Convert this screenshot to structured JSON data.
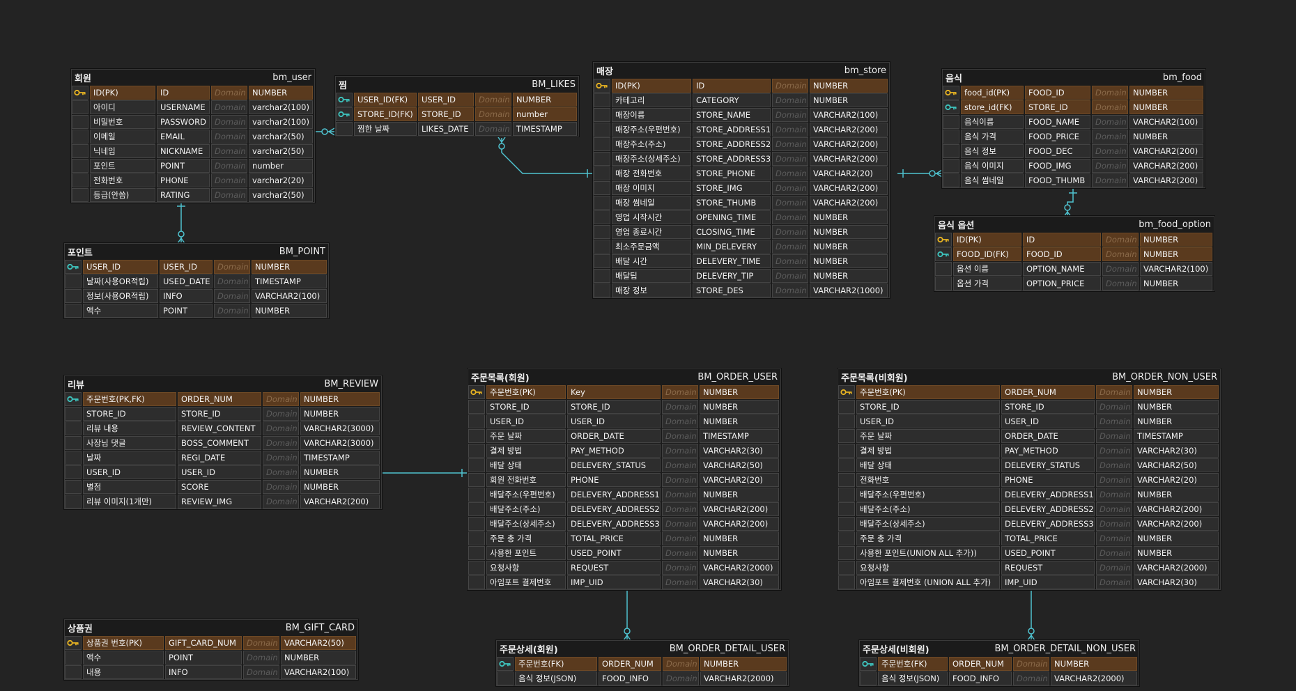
{
  "colors": {
    "background": "#232323",
    "key_row": "#5a3a1e",
    "row": "#2d2d2d",
    "connector": "#4fc3d0",
    "pk_icon": "#e8b422",
    "fk_icon": "#3ec6c0"
  },
  "entities": [
    {
      "id": "bm_user",
      "logical": "회원",
      "physical": "bm_user",
      "columns": [
        {
          "icon": "pk",
          "name": "ID(PK)",
          "field": "ID",
          "domain": "Domain",
          "type": "NUMBER"
        },
        {
          "icon": "",
          "name": "아이디",
          "field": "USERNAME",
          "domain": "Domain",
          "type": "varchar2(100)"
        },
        {
          "icon": "",
          "name": "비밀번호",
          "field": "PASSWORD",
          "domain": "Domain",
          "type": "varchar2(100)"
        },
        {
          "icon": "",
          "name": "이메일",
          "field": "EMAIL",
          "domain": "Domain",
          "type": "varchar2(50)"
        },
        {
          "icon": "",
          "name": "닉네임",
          "field": "NICKNAME",
          "domain": "Domain",
          "type": "varchar2(50)"
        },
        {
          "icon": "",
          "name": "포인트",
          "field": "POINT",
          "domain": "Domain",
          "type": "number"
        },
        {
          "icon": "",
          "name": "전화번호",
          "field": "PHONE",
          "domain": "Domain",
          "type": "varchar2(20)"
        },
        {
          "icon": "",
          "name": "등급(안씀)",
          "field": "RATING",
          "domain": "Domain",
          "type": "varchar2(50)"
        }
      ]
    },
    {
      "id": "bm_likes",
      "logical": "찜",
      "physical": "BM_LIKES",
      "columns": [
        {
          "icon": "fk",
          "name": "USER_ID(FK)",
          "field": "USER_ID",
          "domain": "Domain",
          "type": "NUMBER"
        },
        {
          "icon": "fk",
          "name": "STORE_ID(FK)",
          "field": "STORE_ID",
          "domain": "Domain",
          "type": "number"
        },
        {
          "icon": "",
          "name": "찜한 날짜",
          "field": "LIKES_DATE",
          "domain": "Domain",
          "type": "TIMESTAMP"
        }
      ]
    },
    {
      "id": "bm_store",
      "logical": "매장",
      "physical": "bm_store",
      "columns": [
        {
          "icon": "pk",
          "name": "ID(PK)",
          "field": "ID",
          "domain": "Domain",
          "type": "NUMBER"
        },
        {
          "icon": "",
          "name": "카테고리",
          "field": "CATEGORY",
          "domain": "Domain",
          "type": "NUMBER"
        },
        {
          "icon": "",
          "name": "매장이름",
          "field": "STORE_NAME",
          "domain": "Domain",
          "type": "VARCHAR2(100)"
        },
        {
          "icon": "",
          "name": "매장주소(우편번호)",
          "field": "STORE_ADDRESS1",
          "domain": "Domain",
          "type": "VARCHAR2(200)"
        },
        {
          "icon": "",
          "name": "매장주소(주소)",
          "field": "STORE_ADDRESS2",
          "domain": "Domain",
          "type": "VARCHAR2(200)"
        },
        {
          "icon": "",
          "name": "매장주소(상세주소)",
          "field": "STORE_ADDRESS3",
          "domain": "Domain",
          "type": "VARCHAR2(200)"
        },
        {
          "icon": "",
          "name": "매장 전화번호",
          "field": "STORE_PHONE",
          "domain": "Domain",
          "type": "VARCHAR2(20)"
        },
        {
          "icon": "",
          "name": "매장 이미지",
          "field": "STORE_IMG",
          "domain": "Domain",
          "type": "VARCHAR2(200)"
        },
        {
          "icon": "",
          "name": "매장 썸네일",
          "field": "STORE_THUMB",
          "domain": "Domain",
          "type": "VARCHAR2(200)"
        },
        {
          "icon": "",
          "name": "영업 시작시간",
          "field": "OPENING_TIME",
          "domain": "Domain",
          "type": "NUMBER"
        },
        {
          "icon": "",
          "name": "영업 종료시간",
          "field": "CLOSING_TIME",
          "domain": "Domain",
          "type": "NUMBER"
        },
        {
          "icon": "",
          "name": "최소주문금액",
          "field": "MIN_DELEVERY",
          "domain": "Domain",
          "type": "NUMBER"
        },
        {
          "icon": "",
          "name": "배달 시간",
          "field": "DELEVERY_TIME",
          "domain": "Domain",
          "type": "NUMBER"
        },
        {
          "icon": "",
          "name": "배달팁",
          "field": "DELEVERY_TIP",
          "domain": "Domain",
          "type": "NUMBER"
        },
        {
          "icon": "",
          "name": "매장 정보",
          "field": "STORE_DES",
          "domain": "Domain",
          "type": "VARCHAR2(1000)"
        }
      ]
    },
    {
      "id": "bm_food",
      "logical": "음식",
      "physical": "bm_food",
      "columns": [
        {
          "icon": "pk",
          "name": "food_id(PK)",
          "field": "FOOD_ID",
          "domain": "Domain",
          "type": "NUMBER"
        },
        {
          "icon": "fk",
          "name": "store_id(FK)",
          "field": "STORE_ID",
          "domain": "Domain",
          "type": "NUMBER"
        },
        {
          "icon": "",
          "name": "음식이름",
          "field": "FOOD_NAME",
          "domain": "Domain",
          "type": "VARCHAR2(100)"
        },
        {
          "icon": "",
          "name": "음식 가격",
          "field": "FOOD_PRICE",
          "domain": "Domain",
          "type": "NUMBER"
        },
        {
          "icon": "",
          "name": "음식 정보",
          "field": "FOOD_DEC",
          "domain": "Domain",
          "type": "VARCHAR2(200)"
        },
        {
          "icon": "",
          "name": "음식 이미지",
          "field": "FOOD_IMG",
          "domain": "Domain",
          "type": "VARCHAR2(200)"
        },
        {
          "icon": "",
          "name": "음식 썸네일",
          "field": "FOOD_THUMB",
          "domain": "Domain",
          "type": "VARCHAR2(200)"
        }
      ]
    },
    {
      "id": "bm_food_option",
      "logical": "음식 옵션",
      "physical": "bm_food_option",
      "columns": [
        {
          "icon": "pk",
          "name": "ID(PK)",
          "field": "ID",
          "domain": "Domain",
          "type": "NUMBER"
        },
        {
          "icon": "fk",
          "name": "FOOD_ID(FK)",
          "field": "FOOD_ID",
          "domain": "Domain",
          "type": "NUMBER"
        },
        {
          "icon": "",
          "name": "옵션 이름",
          "field": "OPTION_NAME",
          "domain": "Domain",
          "type": "VARCHAR2(100)"
        },
        {
          "icon": "",
          "name": "옵션 가격",
          "field": "OPTION_PRICE",
          "domain": "Domain",
          "type": "NUMBER"
        }
      ]
    },
    {
      "id": "bm_point",
      "logical": "포인트",
      "physical": "BM_POINT",
      "columns": [
        {
          "icon": "fk",
          "name": "USER_ID",
          "field": "USER_ID",
          "domain": "Domain",
          "type": "NUMBER"
        },
        {
          "icon": "",
          "name": "날짜(사용OR적립)",
          "field": "USED_DATE",
          "domain": "Domain",
          "type": "TIMESTAMP"
        },
        {
          "icon": "",
          "name": "정보(사용OR적립)",
          "field": "INFO",
          "domain": "Domain",
          "type": "VARCHAR2(100)"
        },
        {
          "icon": "",
          "name": "액수",
          "field": "POINT",
          "domain": "Domain",
          "type": "NUMBER"
        }
      ]
    },
    {
      "id": "bm_review",
      "logical": "리뷰",
      "physical": "BM_REVIEW",
      "columns": [
        {
          "icon": "fk",
          "name": "주문번호(PK,FK)",
          "field": "ORDER_NUM",
          "domain": "Domain",
          "type": "NUMBER"
        },
        {
          "icon": "",
          "name": "STORE_ID",
          "field": "STORE_ID",
          "domain": "Domain",
          "type": "NUMBER"
        },
        {
          "icon": "",
          "name": "리뷰 내용",
          "field": "REVIEW_CONTENT",
          "domain": "Domain",
          "type": "VARCHAR2(3000)"
        },
        {
          "icon": "",
          "name": "사장님 댓글",
          "field": "BOSS_COMMENT",
          "domain": "Domain",
          "type": "VARCHAR2(3000)"
        },
        {
          "icon": "",
          "name": "날짜",
          "field": "REGI_DATE",
          "domain": "Domain",
          "type": "TIMESTAMP"
        },
        {
          "icon": "",
          "name": "USER_ID",
          "field": "USER_ID",
          "domain": "Domain",
          "type": "NUMBER"
        },
        {
          "icon": "",
          "name": "별점",
          "field": "SCORE",
          "domain": "Domain",
          "type": "NUMBER"
        },
        {
          "icon": "",
          "name": "리뷰 이미지(1개만)",
          "field": "REVIEW_IMG",
          "domain": "Domain",
          "type": "VARCHAR2(200)"
        }
      ]
    },
    {
      "id": "bm_order_user",
      "logical": "주문목록(회원)",
      "physical": "BM_ORDER_USER",
      "columns": [
        {
          "icon": "pk",
          "name": "주문번호(PK)",
          "field": "Key",
          "domain": "Domain",
          "type": "NUMBER"
        },
        {
          "icon": "",
          "name": "STORE_ID",
          "field": "STORE_ID",
          "domain": "Domain",
          "type": "NUMBER"
        },
        {
          "icon": "",
          "name": "USER_ID",
          "field": "USER_ID",
          "domain": "Domain",
          "type": "NUMBER"
        },
        {
          "icon": "",
          "name": "주문 날짜",
          "field": "ORDER_DATE",
          "domain": "Domain",
          "type": "TIMESTAMP"
        },
        {
          "icon": "",
          "name": "결제 방법",
          "field": "PAY_METHOD",
          "domain": "Domain",
          "type": "VARCHAR2(30)"
        },
        {
          "icon": "",
          "name": "배달 상태",
          "field": "DELEVERY_STATUS",
          "domain": "Domain",
          "type": "VARCHAR2(50)"
        },
        {
          "icon": "",
          "name": "회원 전화번호",
          "field": "PHONE",
          "domain": "Domain",
          "type": "VARCHAR2(20)"
        },
        {
          "icon": "",
          "name": "배달주소(우편번호)",
          "field": "DELEVERY_ADDRESS1",
          "domain": "Domain",
          "type": "NUMBER"
        },
        {
          "icon": "",
          "name": "배달주소(주소)",
          "field": "DELEVERY_ADDRESS2",
          "domain": "Domain",
          "type": "VARCHAR2(200)"
        },
        {
          "icon": "",
          "name": "배달주소(상세주소)",
          "field": "DELEVERY_ADDRESS3",
          "domain": "Domain",
          "type": "VARCHAR2(200)"
        },
        {
          "icon": "",
          "name": "주문 총 가격",
          "field": "TOTAL_PRICE",
          "domain": "Domain",
          "type": "NUMBER"
        },
        {
          "icon": "",
          "name": "사용한 포인트",
          "field": "USED_POINT",
          "domain": "Domain",
          "type": "NUMBER"
        },
        {
          "icon": "",
          "name": "요청사항",
          "field": "REQUEST",
          "domain": "Domain",
          "type": "VARCHAR2(2000)"
        },
        {
          "icon": "",
          "name": "아임포트 결제번호",
          "field": "IMP_UID",
          "domain": "Domain",
          "type": "VARCHAR2(30)"
        }
      ]
    },
    {
      "id": "bm_order_non_user",
      "logical": "주문목록(비회원)",
      "physical": "BM_ORDER_NON_USER",
      "columns": [
        {
          "icon": "pk",
          "name": "주문번호(PK)",
          "field": "ORDER_NUM",
          "domain": "Domain",
          "type": "NUMBER"
        },
        {
          "icon": "",
          "name": "STORE_ID",
          "field": "STORE_ID",
          "domain": "Domain",
          "type": "NUMBER"
        },
        {
          "icon": "",
          "name": "USER_ID",
          "field": "USER_ID",
          "domain": "Domain",
          "type": "NUMBER"
        },
        {
          "icon": "",
          "name": "주문 날짜",
          "field": "ORDER_DATE",
          "domain": "Domain",
          "type": "TIMESTAMP"
        },
        {
          "icon": "",
          "name": "결제 방법",
          "field": "PAY_METHOD",
          "domain": "Domain",
          "type": "VARCHAR2(30)"
        },
        {
          "icon": "",
          "name": "배달 상태",
          "field": "DELEVERY_STATUS",
          "domain": "Domain",
          "type": "VARCHAR2(50)"
        },
        {
          "icon": "",
          "name": "전화번호",
          "field": "PHONE",
          "domain": "Domain",
          "type": "VARCHAR2(20)"
        },
        {
          "icon": "",
          "name": "배달주소(우편번호)",
          "field": "DELEVERY_ADDRESS1",
          "domain": "Domain",
          "type": "NUMBER"
        },
        {
          "icon": "",
          "name": "배달주소(주소)",
          "field": "DELEVERY_ADDRESS2",
          "domain": "Domain",
          "type": "VARCHAR2(200)"
        },
        {
          "icon": "",
          "name": "배달주소(상세주소)",
          "field": "DELEVERY_ADDRESS3",
          "domain": "Domain",
          "type": "VARCHAR2(200)"
        },
        {
          "icon": "",
          "name": "주문 총 가격",
          "field": "TOTAL_PRICE",
          "domain": "Domain",
          "type": "NUMBER"
        },
        {
          "icon": "",
          "name": "사용한 포인트(UNION ALL 추가))",
          "field": "USED_POINT",
          "domain": "Domain",
          "type": "NUMBER"
        },
        {
          "icon": "",
          "name": "요청사항",
          "field": "REQUEST",
          "domain": "Domain",
          "type": "VARCHAR2(2000)"
        },
        {
          "icon": "",
          "name": "아임포트 결제번호 (UNION ALL 추가)",
          "field": "IMP_UID",
          "domain": "Domain",
          "type": "VARCHAR2(30)"
        }
      ]
    },
    {
      "id": "bm_gift_card",
      "logical": "상품권",
      "physical": "BM_GIFT_CARD",
      "columns": [
        {
          "icon": "pk",
          "name": "상품권 번호(PK)",
          "field": "GIFT_CARD_NUM",
          "domain": "Domain",
          "type": "VARCHAR2(50)"
        },
        {
          "icon": "",
          "name": "액수",
          "field": "POINT",
          "domain": "Domain",
          "type": "NUMBER"
        },
        {
          "icon": "",
          "name": "내용",
          "field": "INFO",
          "domain": "Domain",
          "type": "VARCHAR2(100)"
        }
      ]
    },
    {
      "id": "bm_order_detail_user",
      "logical": "주문상세(회원)",
      "physical": "BM_ORDER_DETAIL_USER",
      "columns": [
        {
          "icon": "fk",
          "name": "주문번호(FK)",
          "field": "ORDER_NUM",
          "domain": "Domain",
          "type": "NUMBER"
        },
        {
          "icon": "",
          "name": "음식 정보(JSON)",
          "field": "FOOD_INFO",
          "domain": "Domain",
          "type": "VARCHAR2(2000)"
        }
      ]
    },
    {
      "id": "bm_order_detail_non_user",
      "logical": "주문상세(비회원)",
      "physical": "BM_ORDER_DETAIL_NON_USER",
      "columns": [
        {
          "icon": "fk",
          "name": "주문번호(FK)",
          "field": "ORDER_NUM",
          "domain": "Domain",
          "type": "NUMBER"
        },
        {
          "icon": "",
          "name": "음식 정보(JSON)",
          "field": "FOOD_INFO",
          "domain": "Domain",
          "type": "VARCHAR2(2000)"
        }
      ]
    }
  ],
  "relationships": [
    {
      "from": "bm_user",
      "to": "bm_likes"
    },
    {
      "from": "bm_user",
      "to": "bm_point"
    },
    {
      "from": "bm_store",
      "to": "bm_likes"
    },
    {
      "from": "bm_store",
      "to": "bm_food"
    },
    {
      "from": "bm_food",
      "to": "bm_food_option"
    },
    {
      "from": "bm_order_user",
      "to": "bm_review"
    },
    {
      "from": "bm_order_user",
      "to": "bm_order_detail_user"
    },
    {
      "from": "bm_order_non_user",
      "to": "bm_order_detail_non_user"
    }
  ]
}
